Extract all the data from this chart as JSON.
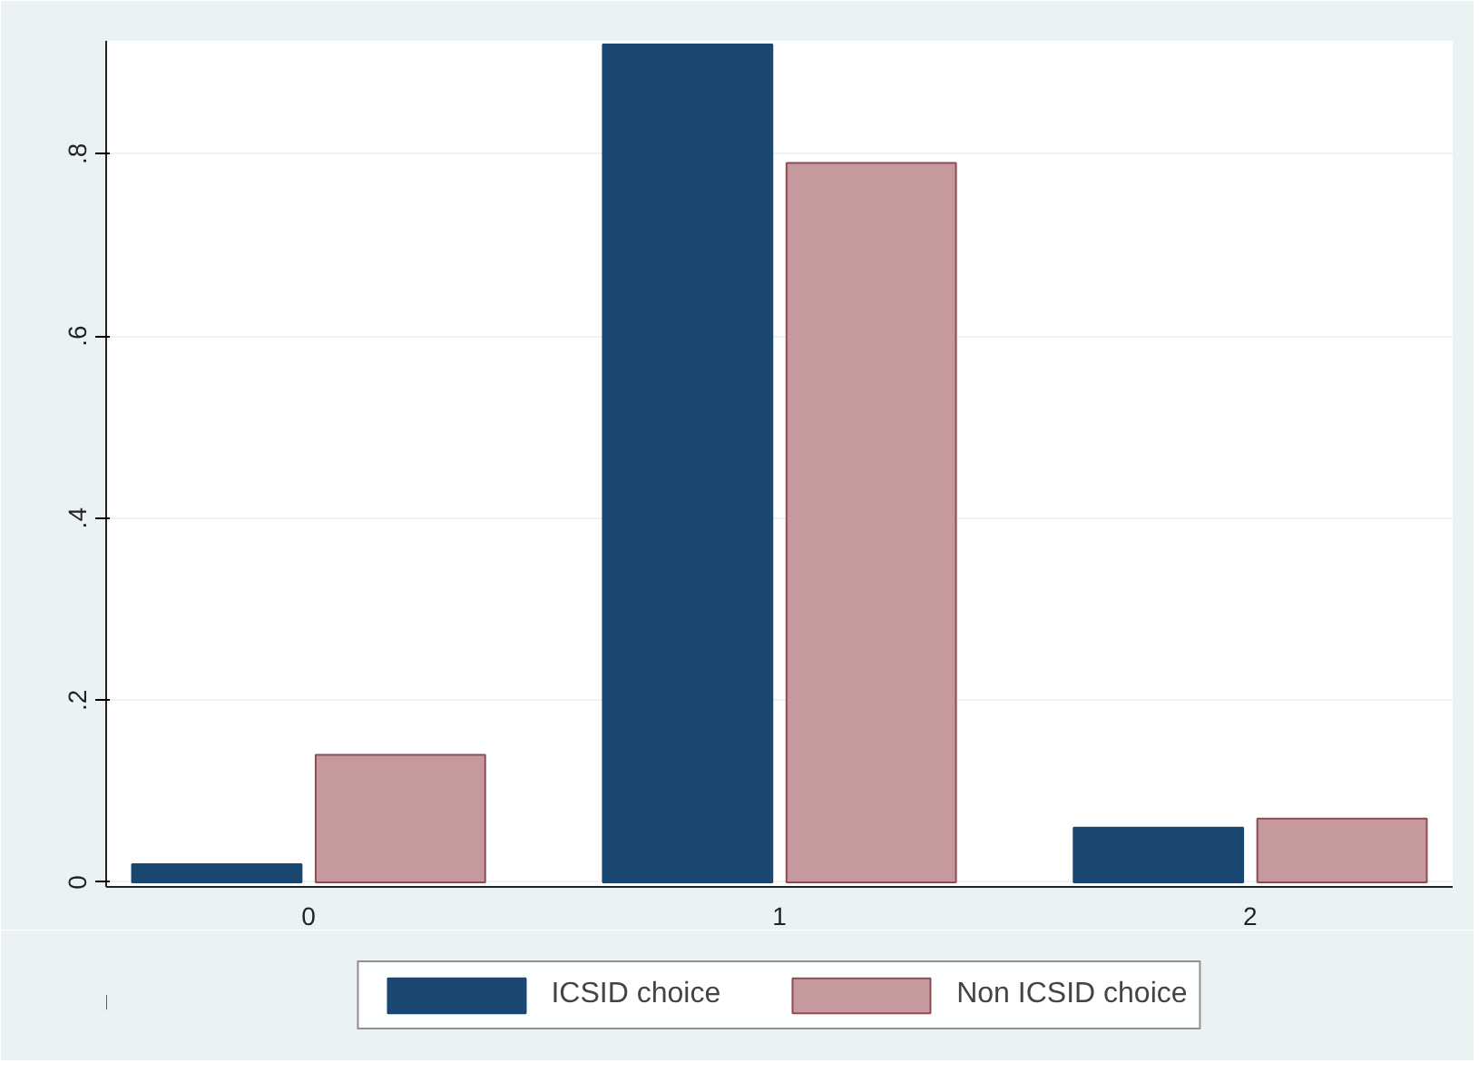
{
  "chart_data": {
    "type": "bar",
    "categories": [
      "0",
      "1",
      "2"
    ],
    "series": [
      {
        "name": "ICSID choice",
        "color": "#1a476f",
        "values": [
          0.02,
          0.92,
          0.06
        ]
      },
      {
        "name": "Non ICSID choice",
        "color": "#c69a9c",
        "values": [
          0.14,
          0.79,
          0.07
        ]
      }
    ],
    "ylim": [
      -0.005,
      0.924
    ],
    "yticks": [
      0,
      {
        "value": 0.2,
        "label": ".2"
      },
      {
        "value": 0.4,
        "label": ".4"
      },
      {
        "value": 0.6,
        "label": ".6"
      },
      {
        "value": 0.8,
        "label": ".8"
      }
    ],
    "grid": "y",
    "legend": "bottom"
  }
}
